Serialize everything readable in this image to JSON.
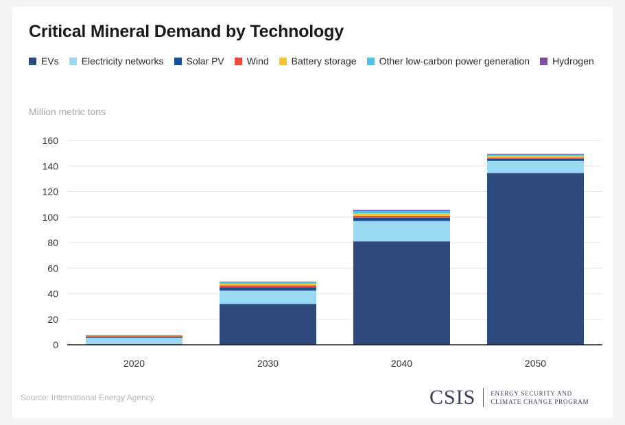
{
  "chart_data": {
    "type": "bar",
    "stacked": true,
    "title": "Critical Mineral Demand by Technology",
    "ylabel": "Million metric tons",
    "xlabel": "",
    "categories": [
      "2020",
      "2030",
      "2040",
      "2050"
    ],
    "ylim": [
      0,
      160
    ],
    "yticks": [
      0,
      20,
      40,
      60,
      80,
      100,
      120,
      140,
      160
    ],
    "grid": true,
    "legend_position": "top",
    "series": [
      {
        "name": "EVs",
        "color": "#2e4a7d",
        "values": [
          0.5,
          32,
          81,
          134.5
        ]
      },
      {
        "name": "Electricity networks",
        "color": "#9ad9f2",
        "values": [
          5.0,
          10.5,
          16,
          9.5
        ]
      },
      {
        "name": "Solar PV",
        "color": "#1a4f9c",
        "values": [
          0.7,
          2.5,
          2.5,
          1.5
        ]
      },
      {
        "name": "Wind",
        "color": "#e84a3d",
        "values": [
          0.5,
          1.5,
          1.5,
          1.0
        ]
      },
      {
        "name": "Battery storage",
        "color": "#f5c431",
        "values": [
          0.3,
          1.5,
          2.0,
          1.5
        ]
      },
      {
        "name": "Other low-carbon power generation",
        "color": "#4cc3e6",
        "values": [
          0.5,
          1.0,
          2.0,
          1.0
        ]
      },
      {
        "name": "Hydrogen",
        "color": "#7b4fa6",
        "values": [
          0.1,
          0.5,
          0.8,
          0.5
        ]
      }
    ]
  },
  "source": "Source: International Energy Agency.",
  "logo": {
    "word": "CSIS",
    "line1": "ENERGY SECURITY AND",
    "line2": "CLIMATE CHANGE PROGRAM"
  }
}
